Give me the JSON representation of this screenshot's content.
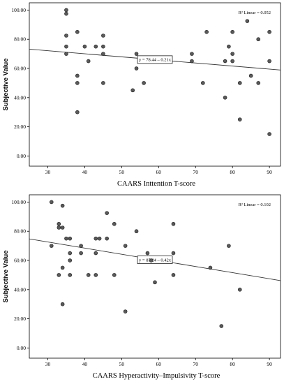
{
  "chart_data": [
    {
      "type": "scatter",
      "title": "",
      "xlabel": "CAARS Inttention T-score",
      "ylabel": "Subjective Value",
      "xlim": [
        25,
        93
      ],
      "ylim": [
        -7,
        105
      ],
      "xticks": [
        "30",
        "40",
        "50",
        "60",
        "70",
        "80",
        "90"
      ],
      "yticks": [
        "0.00",
        "20.00",
        "40.00",
        "60.00",
        "80.00",
        "100.00"
      ],
      "grid": false,
      "fit_line": {
        "intercept": 78.44,
        "slope": -0.21,
        "label": "y = 78.44 – 0.21x"
      },
      "r2_label": "R² Linear = 0.052",
      "points": [
        [
          35,
          100
        ],
        [
          35,
          97.5
        ],
        [
          35,
          82.5
        ],
        [
          35,
          75
        ],
        [
          35,
          70
        ],
        [
          38,
          85
        ],
        [
          38,
          55
        ],
        [
          38,
          50
        ],
        [
          38,
          30
        ],
        [
          40,
          75
        ],
        [
          41,
          65
        ],
        [
          43,
          75
        ],
        [
          45,
          82.5
        ],
        [
          45,
          75
        ],
        [
          45,
          70
        ],
        [
          45,
          50
        ],
        [
          53,
          45
        ],
        [
          54,
          70
        ],
        [
          54,
          60
        ],
        [
          56,
          50
        ],
        [
          69,
          70
        ],
        [
          69,
          65
        ],
        [
          72,
          50
        ],
        [
          73,
          85
        ],
        [
          78,
          65
        ],
        [
          78,
          40
        ],
        [
          79,
          75
        ],
        [
          80,
          85
        ],
        [
          80,
          70
        ],
        [
          80,
          65
        ],
        [
          82,
          50
        ],
        [
          82,
          25
        ],
        [
          84,
          92.5
        ],
        [
          85,
          55
        ],
        [
          87,
          80
        ],
        [
          87,
          50
        ],
        [
          90,
          85
        ],
        [
          90,
          65
        ],
        [
          90,
          15
        ]
      ]
    },
    {
      "type": "scatter",
      "title": "",
      "xlabel": "CAARS Hyperactivity–Impulsivity T-score",
      "ylabel": "Subjective Value",
      "xlim": [
        25,
        93
      ],
      "ylim": [
        -7,
        105
      ],
      "xticks": [
        "30",
        "40",
        "50",
        "60",
        "70",
        "80",
        "90"
      ],
      "yticks": [
        "0.00",
        "20.00",
        "40.00",
        "60.00",
        "80.00",
        "100.00"
      ],
      "grid": false,
      "fit_line": {
        "intercept": 85.24,
        "slope": -0.42,
        "label": "y = 85.24 – 0.42x"
      },
      "r2_label": "R² Linear = 0.102",
      "points": [
        [
          31,
          100
        ],
        [
          31,
          70
        ],
        [
          33,
          85
        ],
        [
          33,
          82.5
        ],
        [
          33,
          50
        ],
        [
          34,
          97.5
        ],
        [
          34,
          82.5
        ],
        [
          34,
          55
        ],
        [
          34,
          30
        ],
        [
          35,
          75
        ],
        [
          36,
          75
        ],
        [
          36,
          65
        ],
        [
          36,
          60
        ],
        [
          36,
          50
        ],
        [
          39,
          70
        ],
        [
          39,
          65
        ],
        [
          41,
          50
        ],
        [
          43,
          75
        ],
        [
          43,
          65
        ],
        [
          43,
          50
        ],
        [
          44,
          75
        ],
        [
          46,
          92.5
        ],
        [
          46,
          75
        ],
        [
          48,
          85
        ],
        [
          48,
          50
        ],
        [
          51,
          70
        ],
        [
          51,
          25
        ],
        [
          54,
          80
        ],
        [
          57,
          65
        ],
        [
          58,
          60
        ],
        [
          59,
          45
        ],
        [
          64,
          85
        ],
        [
          64,
          65
        ],
        [
          64,
          50
        ],
        [
          74,
          55
        ],
        [
          77,
          15
        ],
        [
          79,
          70
        ],
        [
          82,
          40
        ]
      ]
    }
  ]
}
